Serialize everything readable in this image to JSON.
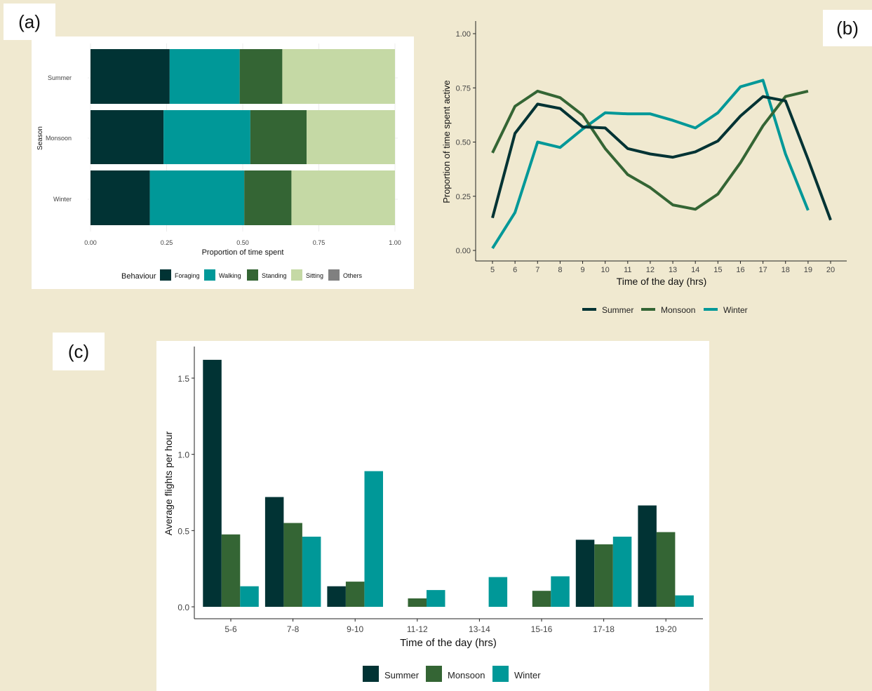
{
  "labels": {
    "a": "(a)",
    "b": "(b)",
    "c": "(c)"
  },
  "colors": {
    "Summer": "#013334",
    "Monsoon": "#346534",
    "Winter": "#009898",
    "Foraging": "#013334",
    "Walking": "#009898",
    "Standing": "#346534",
    "Sitting": "#c5d9a5",
    "Others": "#808080"
  },
  "chart_data": [
    {
      "id": "a",
      "type": "bar",
      "orientation": "horizontal",
      "stacked": true,
      "title": "",
      "xlabel": "Proportion of time spent",
      "ylabel": "Season",
      "xlim": [
        0,
        1
      ],
      "xticks": [
        "0.00",
        "0.25",
        "0.50",
        "0.75",
        "1.00"
      ],
      "categories": [
        "Summer",
        "Monsoon",
        "Winter"
      ],
      "legend_title": "Behaviour",
      "legend_position": "bottom",
      "series": [
        {
          "name": "Foraging",
          "values": [
            0.26,
            0.24,
            0.195
          ]
        },
        {
          "name": "Walking",
          "values": [
            0.23,
            0.285,
            0.31
          ]
        },
        {
          "name": "Standing",
          "values": [
            0.14,
            0.185,
            0.155
          ]
        },
        {
          "name": "Sitting",
          "values": [
            0.37,
            0.29,
            0.34
          ]
        },
        {
          "name": "Others",
          "values": [
            0,
            0,
            0
          ]
        }
      ]
    },
    {
      "id": "b",
      "type": "line",
      "title": "",
      "xlabel": "Time of the day (hrs)",
      "ylabel": "Proportion of time spent active",
      "xlim": [
        5,
        20
      ],
      "ylim": [
        0,
        1
      ],
      "xticks": [
        "5",
        "6",
        "7",
        "8",
        "9",
        "10",
        "11",
        "12",
        "13",
        "14",
        "15",
        "16",
        "17",
        "18",
        "19",
        "20"
      ],
      "yticks": [
        "0.00",
        "0.25",
        "0.50",
        "0.75",
        "1.00"
      ],
      "legend_position": "bottom",
      "series": [
        {
          "name": "Summer",
          "x": [
            5,
            6,
            7,
            8,
            9,
            10,
            11,
            12,
            13,
            14,
            15,
            16,
            17,
            18,
            19,
            20
          ],
          "y": [
            0.15,
            0.54,
            0.675,
            0.655,
            0.57,
            0.565,
            0.47,
            0.445,
            0.43,
            0.455,
            0.505,
            0.62,
            0.71,
            0.69,
            0.42,
            0.14
          ]
        },
        {
          "name": "Monsoon",
          "x": [
            5,
            6,
            7,
            8,
            9,
            10,
            11,
            12,
            13,
            14,
            15,
            16,
            17,
            18,
            19
          ],
          "y": [
            0.45,
            0.665,
            0.735,
            0.705,
            0.625,
            0.47,
            0.35,
            0.29,
            0.21,
            0.19,
            0.26,
            0.405,
            0.575,
            0.71,
            0.735
          ]
        },
        {
          "name": "Winter",
          "x": [
            5,
            6,
            7,
            8,
            9,
            10,
            11,
            12,
            13,
            14,
            15,
            16,
            17,
            18,
            19
          ],
          "y": [
            0.01,
            0.175,
            0.5,
            0.475,
            0.56,
            0.635,
            0.63,
            0.63,
            0.6,
            0.565,
            0.635,
            0.755,
            0.785,
            0.445,
            0.185
          ]
        }
      ]
    },
    {
      "id": "c",
      "type": "bar",
      "grouped": true,
      "title": "",
      "xlabel": "Time of the day (hrs)",
      "ylabel": "Average flights per hour",
      "ylim": [
        0,
        1.72
      ],
      "yticks": [
        "0.0",
        "0.5",
        "1.0",
        "1.5"
      ],
      "categories": [
        "5-6",
        "7-8",
        "9-10",
        "11-12",
        "13-14",
        "15-16",
        "17-18",
        "19-20"
      ],
      "legend_position": "bottom",
      "series": [
        {
          "name": "Summer",
          "values": [
            1.62,
            0.72,
            0.135,
            0,
            0,
            0,
            0.44,
            0.665
          ]
        },
        {
          "name": "Monsoon",
          "values": [
            0.475,
            0.55,
            0.165,
            0.055,
            0,
            0.105,
            0.41,
            0.49
          ]
        },
        {
          "name": "Winter",
          "values": [
            0.135,
            0.46,
            0.89,
            0.11,
            0.195,
            0.2,
            0.46,
            0.075
          ]
        }
      ]
    }
  ]
}
